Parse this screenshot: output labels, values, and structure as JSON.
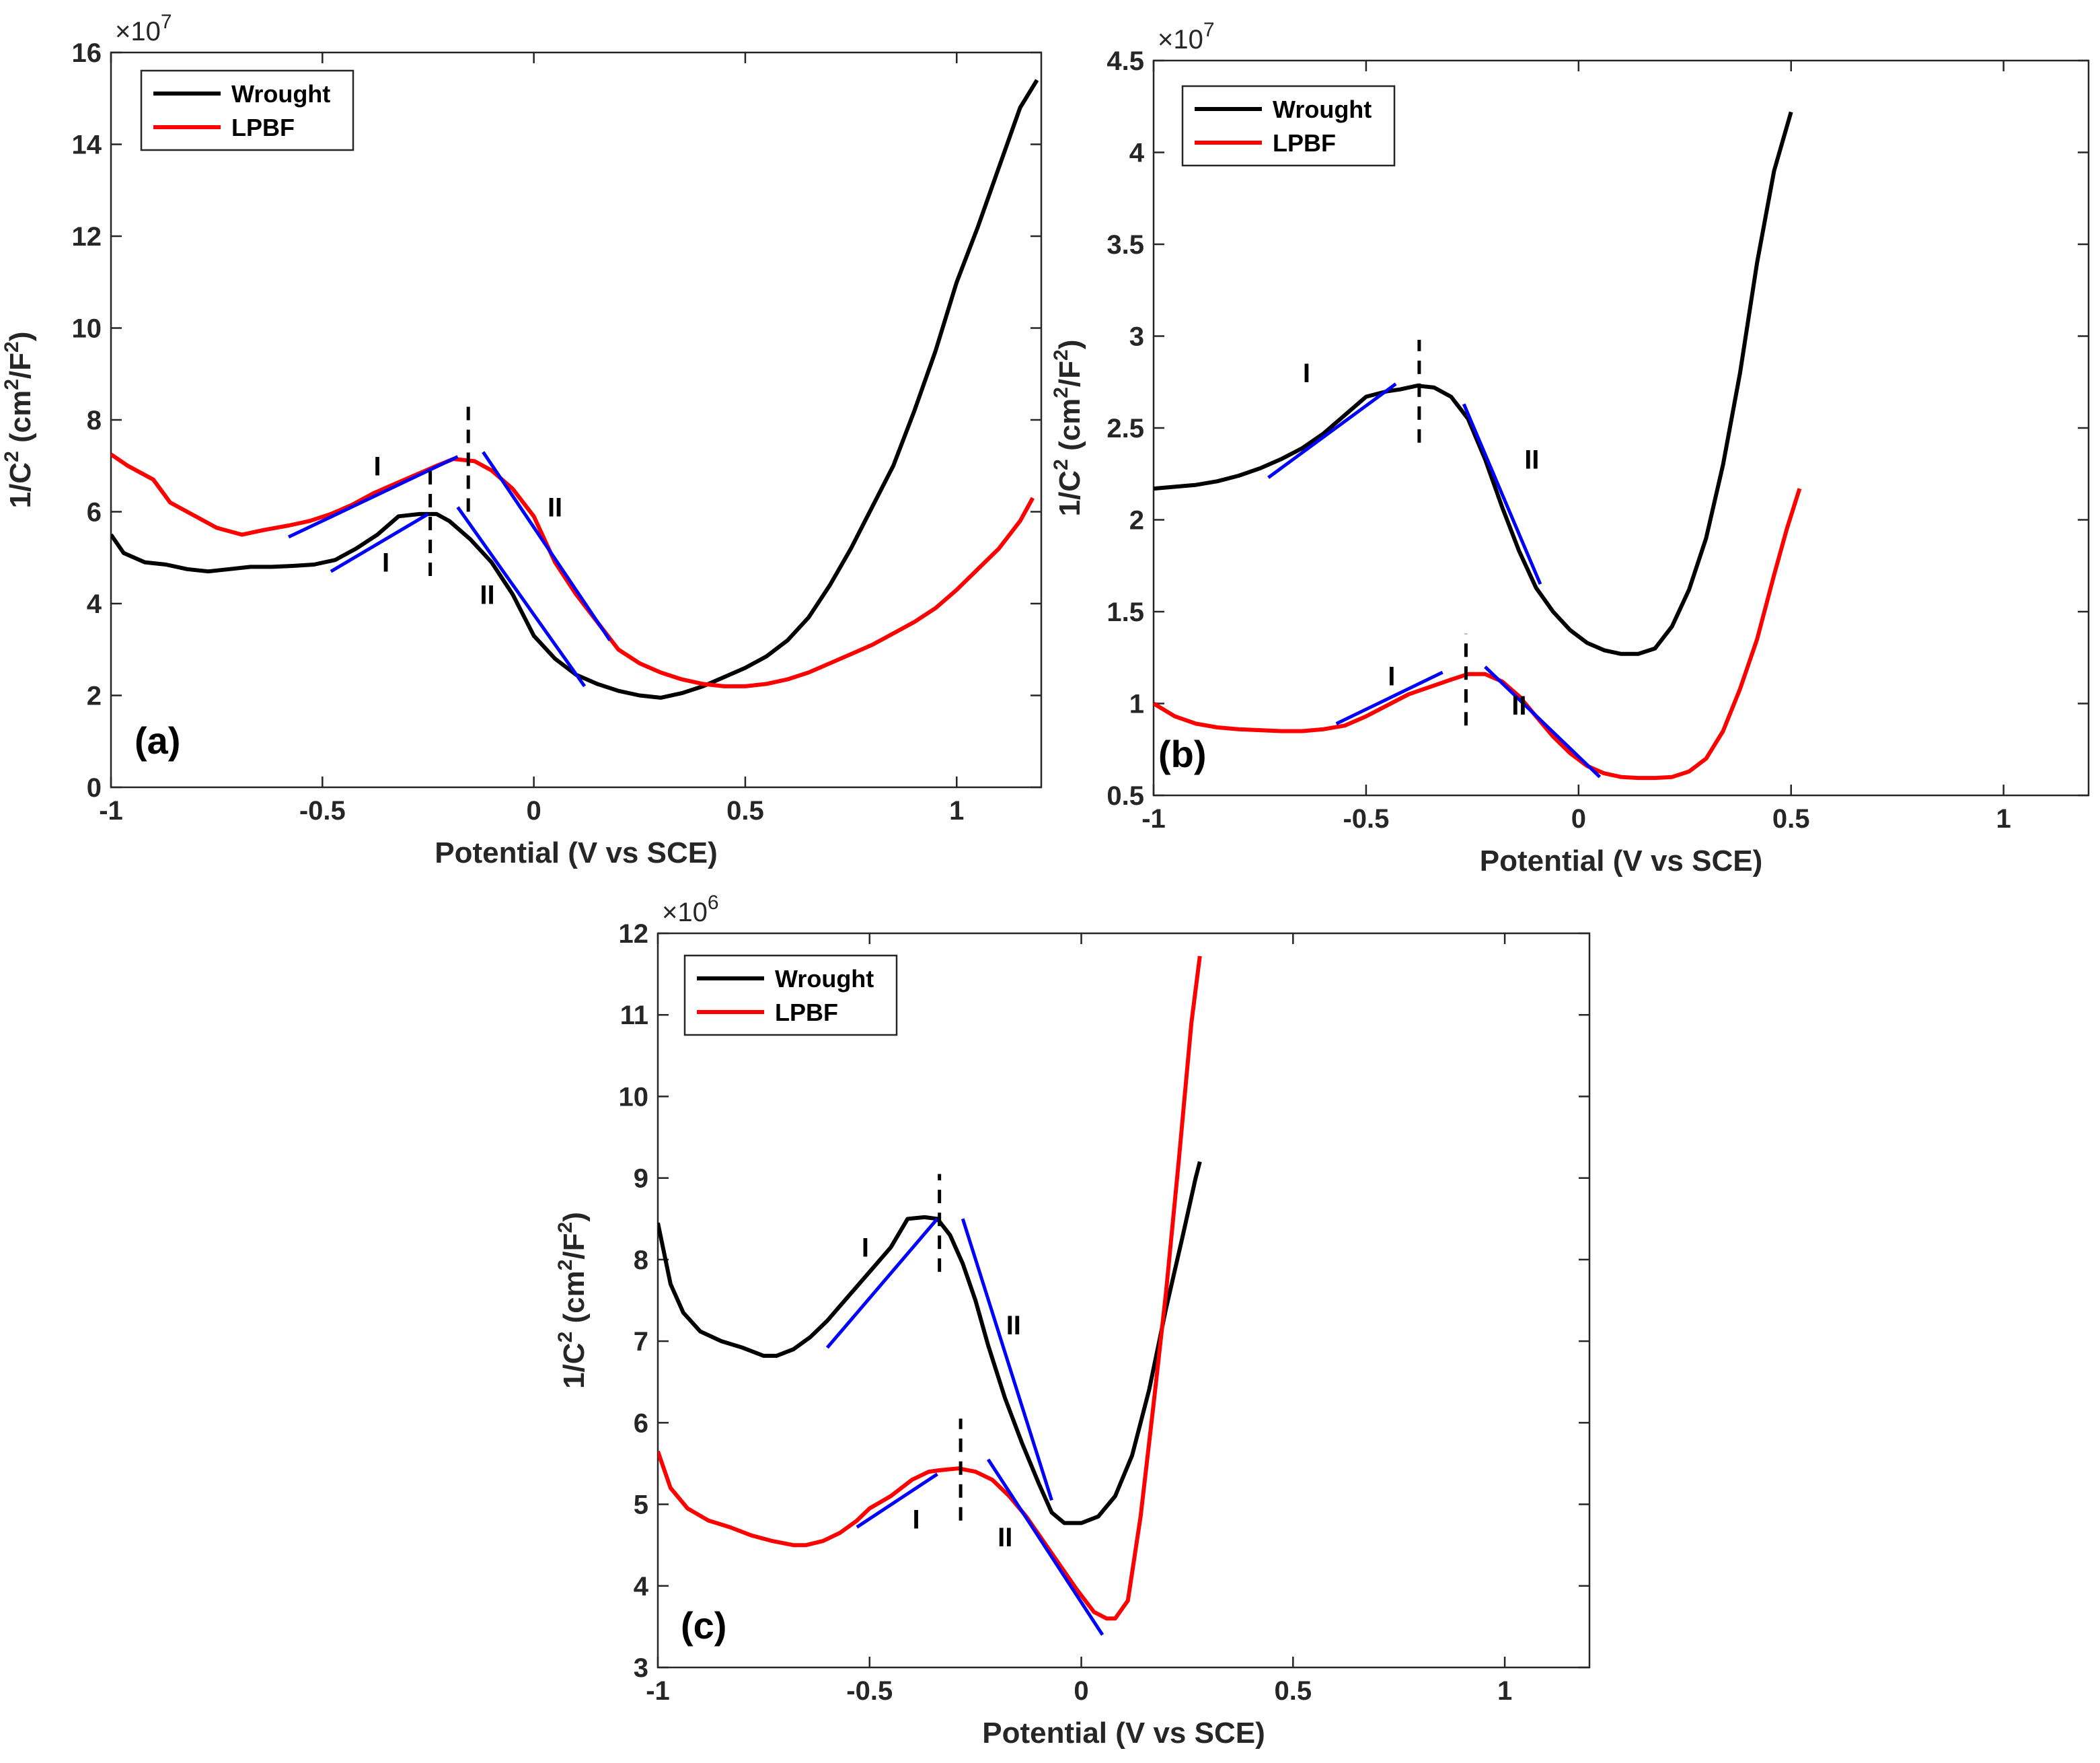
{
  "figure": {
    "xlabel": "Potential (V vs SCE)",
    "ylabel_main": "1/C",
    "ylabel_sup1": "2",
    "ylabel_units_a": " (cm",
    "ylabel_sup2": "2",
    "ylabel_units_b": "/F",
    "ylabel_sup3": "2",
    "ylabel_close": ")"
  },
  "colors": {
    "wrought": "#000000",
    "lpbf": "#ff0000",
    "fit": "#0000ff"
  },
  "chart_data": [
    {
      "id": "a",
      "type": "line",
      "panel_label": "(a)",
      "xlabel": "Potential (V vs SCE)",
      "ylabel": "1/C^2 (cm^2/F^2)",
      "multiplier_base": "×10",
      "multiplier_exp": "7",
      "xlim": [
        -1,
        1.2
      ],
      "ylim": [
        0,
        16
      ],
      "xticks": [
        -1,
        -0.5,
        0,
        0.5,
        1
      ],
      "xtick_labels": [
        "-1",
        "-0.5",
        "0",
        "0.5",
        "1"
      ],
      "yticks": [
        0,
        2,
        4,
        6,
        8,
        10,
        12,
        14,
        16
      ],
      "ytick_labels": [
        "0",
        "2",
        "4",
        "6",
        "8",
        "10",
        "12",
        "14",
        "16"
      ],
      "legend": {
        "position": "top-left",
        "entries": [
          "Wrought",
          "LPBF"
        ]
      },
      "series": [
        {
          "name": "Wrought",
          "color": "#000000",
          "x": [
            -1,
            -0.97,
            -0.92,
            -0.87,
            -0.82,
            -0.77,
            -0.72,
            -0.67,
            -0.62,
            -0.57,
            -0.52,
            -0.47,
            -0.42,
            -0.37,
            -0.32,
            -0.27,
            -0.23,
            -0.2,
            -0.15,
            -0.1,
            -0.05,
            0,
            0.05,
            0.1,
            0.15,
            0.2,
            0.25,
            0.3,
            0.35,
            0.4,
            0.45,
            0.5,
            0.55,
            0.6,
            0.65,
            0.7,
            0.75,
            0.8,
            0.85,
            0.9,
            0.95,
            1,
            1.05,
            1.1,
            1.15,
            1.19
          ],
          "y": [
            5.5,
            5.1,
            4.9,
            4.85,
            4.75,
            4.7,
            4.75,
            4.8,
            4.8,
            4.82,
            4.85,
            4.95,
            5.2,
            5.5,
            5.9,
            5.95,
            5.95,
            5.8,
            5.4,
            4.9,
            4.2,
            3.3,
            2.8,
            2.45,
            2.25,
            2.1,
            2.0,
            1.95,
            2.05,
            2.2,
            2.4,
            2.6,
            2.85,
            3.2,
            3.7,
            4.4,
            5.2,
            6.1,
            7.0,
            8.2,
            9.5,
            11.0,
            12.2,
            13.5,
            14.8,
            15.4
          ]
        },
        {
          "name": "LPBF",
          "color": "#ff0000",
          "x": [
            -1,
            -0.96,
            -0.9,
            -0.86,
            -0.8,
            -0.75,
            -0.69,
            -0.64,
            -0.58,
            -0.53,
            -0.48,
            -0.43,
            -0.38,
            -0.33,
            -0.28,
            -0.23,
            -0.19,
            -0.14,
            -0.1,
            -0.05,
            0,
            0.05,
            0.1,
            0.15,
            0.2,
            0.25,
            0.3,
            0.35,
            0.4,
            0.45,
            0.5,
            0.55,
            0.6,
            0.65,
            0.7,
            0.75,
            0.8,
            0.85,
            0.9,
            0.95,
            1,
            1.05,
            1.1,
            1.15,
            1.18
          ],
          "y": [
            7.25,
            7.0,
            6.7,
            6.2,
            5.9,
            5.65,
            5.5,
            5.6,
            5.7,
            5.8,
            5.95,
            6.15,
            6.4,
            6.6,
            6.8,
            7.0,
            7.15,
            7.1,
            6.9,
            6.5,
            5.9,
            4.9,
            4.2,
            3.6,
            3.0,
            2.7,
            2.5,
            2.35,
            2.25,
            2.2,
            2.2,
            2.25,
            2.35,
            2.5,
            2.7,
            2.9,
            3.1,
            3.35,
            3.6,
            3.9,
            4.3,
            4.75,
            5.2,
            5.8,
            6.3
          ]
        }
      ],
      "fit_lines": [
        {
          "x": [
            -0.58,
            -0.18
          ],
          "y": [
            5.45,
            7.2
          ]
        },
        {
          "x": [
            -0.12,
            0.18
          ],
          "y": [
            7.3,
            3.2
          ]
        },
        {
          "x": [
            -0.48,
            -0.25
          ],
          "y": [
            4.7,
            5.95
          ]
        },
        {
          "x": [
            -0.18,
            0.12
          ],
          "y": [
            6.1,
            2.2
          ]
        }
      ],
      "dashed_lines": [
        {
          "x": -0.155,
          "y": [
            6.0,
            8.35
          ]
        },
        {
          "x": -0.245,
          "y": [
            4.6,
            6.9
          ]
        }
      ],
      "annotations": [
        {
          "text": "I",
          "x": -0.37,
          "y": 7.0
        },
        {
          "text": "II",
          "x": 0.05,
          "y": 6.1
        },
        {
          "text": "I",
          "x": -0.35,
          "y": 4.9
        },
        {
          "text": "II",
          "x": -0.11,
          "y": 4.2
        }
      ]
    },
    {
      "id": "b",
      "type": "line",
      "panel_label": "(b)",
      "xlabel": "Potential (V vs SCE)",
      "ylabel": "1/C^2 (cm^2/F^2)",
      "multiplier_base": "×10",
      "multiplier_exp": "7",
      "xlim": [
        -1,
        1.2
      ],
      "ylim": [
        0.5,
        4.5
      ],
      "xticks": [
        -1,
        -0.5,
        0,
        0.5,
        1
      ],
      "xtick_labels": [
        "-1",
        "-0.5",
        "0",
        "0.5",
        "1"
      ],
      "yticks": [
        0.5,
        1,
        1.5,
        2,
        2.5,
        3,
        3.5,
        4,
        4.5
      ],
      "ytick_labels": [
        "0.5",
        "1",
        "1.5",
        "2",
        "2.5",
        "3",
        "3.5",
        "4",
        "4.5"
      ],
      "legend": {
        "position": "top-left",
        "entries": [
          "Wrought",
          "LPBF"
        ]
      },
      "series": [
        {
          "name": "Wrought",
          "color": "#000000",
          "x": [
            -1,
            -0.95,
            -0.9,
            -0.85,
            -0.8,
            -0.75,
            -0.7,
            -0.65,
            -0.6,
            -0.55,
            -0.5,
            -0.45,
            -0.42,
            -0.38,
            -0.34,
            -0.3,
            -0.26,
            -0.22,
            -0.18,
            -0.14,
            -0.1,
            -0.06,
            -0.02,
            0.02,
            0.06,
            0.1,
            0.14,
            0.18,
            0.22,
            0.26,
            0.3,
            0.34,
            0.38,
            0.42,
            0.46,
            0.5
          ],
          "y": [
            2.17,
            2.18,
            2.19,
            2.21,
            2.24,
            2.28,
            2.33,
            2.39,
            2.47,
            2.57,
            2.67,
            2.7,
            2.71,
            2.73,
            2.72,
            2.67,
            2.55,
            2.33,
            2.07,
            1.83,
            1.63,
            1.5,
            1.4,
            1.33,
            1.29,
            1.27,
            1.27,
            1.3,
            1.42,
            1.62,
            1.9,
            2.3,
            2.8,
            3.4,
            3.9,
            4.22
          ]
        },
        {
          "name": "LPBF",
          "color": "#ff0000",
          "x": [
            -1,
            -0.95,
            -0.9,
            -0.85,
            -0.8,
            -0.75,
            -0.7,
            -0.65,
            -0.6,
            -0.55,
            -0.5,
            -0.45,
            -0.4,
            -0.35,
            -0.3,
            -0.26,
            -0.22,
            -0.18,
            -0.14,
            -0.1,
            -0.06,
            -0.02,
            0.02,
            0.06,
            0.1,
            0.14,
            0.18,
            0.22,
            0.26,
            0.3,
            0.34,
            0.38,
            0.42,
            0.46,
            0.49,
            0.52
          ],
          "y": [
            1.0,
            0.93,
            0.89,
            0.87,
            0.86,
            0.855,
            0.85,
            0.85,
            0.86,
            0.88,
            0.93,
            0.99,
            1.05,
            1.09,
            1.13,
            1.16,
            1.16,
            1.12,
            1.04,
            0.93,
            0.82,
            0.73,
            0.66,
            0.62,
            0.6,
            0.595,
            0.595,
            0.6,
            0.63,
            0.7,
            0.85,
            1.08,
            1.35,
            1.7,
            1.95,
            2.17
          ]
        }
      ],
      "fit_lines": [
        {
          "x": [
            -0.73,
            -0.43
          ],
          "y": [
            2.23,
            2.74
          ]
        },
        {
          "x": [
            -0.27,
            -0.09
          ],
          "y": [
            2.63,
            1.65
          ]
        },
        {
          "x": [
            -0.57,
            -0.32
          ],
          "y": [
            0.89,
            1.17
          ]
        },
        {
          "x": [
            -0.22,
            0.05
          ],
          "y": [
            1.2,
            0.6
          ]
        }
      ],
      "dashed_lines": [
        {
          "x": -0.375,
          "y": [
            2.42,
            2.98
          ]
        },
        {
          "x": -0.265,
          "y": [
            0.88,
            1.38
          ]
        }
      ],
      "annotations": [
        {
          "text": "I",
          "x": -0.64,
          "y": 2.8
        },
        {
          "text": "II",
          "x": -0.11,
          "y": 2.33
        },
        {
          "text": "I",
          "x": -0.44,
          "y": 1.15
        },
        {
          "text": "II",
          "x": -0.14,
          "y": 0.99
        }
      ]
    },
    {
      "id": "c",
      "type": "line",
      "panel_label": "(c)",
      "xlabel": "Potential (V vs SCE)",
      "ylabel": "1/C^2 (cm^2/F^2)",
      "multiplier_base": "×10",
      "multiplier_exp": "6",
      "xlim": [
        -1,
        1.2
      ],
      "ylim": [
        3,
        12
      ],
      "xticks": [
        -1,
        -0.5,
        0,
        0.5,
        1
      ],
      "xtick_labels": [
        "-1",
        "-0.5",
        "0",
        "0.5",
        "1"
      ],
      "yticks": [
        3,
        4,
        5,
        6,
        7,
        8,
        9,
        10,
        11,
        12
      ],
      "ytick_labels": [
        "3",
        "4",
        "5",
        "6",
        "7",
        "8",
        "9",
        "10",
        "11",
        "12"
      ],
      "legend": {
        "position": "top-left",
        "entries": [
          "Wrought",
          "LPBF"
        ]
      },
      "series": [
        {
          "name": "Wrought",
          "color": "#000000",
          "x": [
            -1,
            -0.97,
            -0.94,
            -0.9,
            -0.85,
            -0.8,
            -0.75,
            -0.72,
            -0.68,
            -0.64,
            -0.6,
            -0.55,
            -0.5,
            -0.45,
            -0.41,
            -0.37,
            -0.34,
            -0.31,
            -0.28,
            -0.25,
            -0.22,
            -0.18,
            -0.14,
            -0.1,
            -0.07,
            -0.04,
            0,
            0.04,
            0.08,
            0.12,
            0.16,
            0.2,
            0.24,
            0.27,
            0.28
          ],
          "y": [
            8.45,
            7.7,
            7.35,
            7.12,
            7.0,
            6.92,
            6.82,
            6.82,
            6.9,
            7.05,
            7.25,
            7.55,
            7.85,
            8.15,
            8.5,
            8.52,
            8.5,
            8.3,
            7.95,
            7.5,
            6.95,
            6.3,
            5.75,
            5.25,
            4.9,
            4.77,
            4.77,
            4.85,
            5.1,
            5.6,
            6.4,
            7.4,
            8.3,
            9.0,
            9.2
          ]
        },
        {
          "name": "LPBF",
          "color": "#ff0000",
          "x": [
            -1,
            -0.97,
            -0.93,
            -0.88,
            -0.83,
            -0.78,
            -0.73,
            -0.68,
            -0.65,
            -0.61,
            -0.57,
            -0.53,
            -0.5,
            -0.45,
            -0.4,
            -0.36,
            -0.33,
            -0.29,
            -0.25,
            -0.21,
            -0.17,
            -0.13,
            -0.09,
            -0.05,
            -0.01,
            0.03,
            0.06,
            0.08,
            0.11,
            0.14,
            0.17,
            0.2,
            0.23,
            0.26,
            0.28
          ],
          "y": [
            5.65,
            5.2,
            4.95,
            4.8,
            4.72,
            4.62,
            4.55,
            4.5,
            4.5,
            4.55,
            4.65,
            4.8,
            4.95,
            5.1,
            5.3,
            5.4,
            5.42,
            5.44,
            5.4,
            5.3,
            5.1,
            4.85,
            4.55,
            4.25,
            3.95,
            3.68,
            3.6,
            3.6,
            3.82,
            4.85,
            6.2,
            7.6,
            9.2,
            10.9,
            11.72
          ]
        }
      ],
      "fit_lines": [
        {
          "x": [
            -0.6,
            -0.34
          ],
          "y": [
            6.92,
            8.5
          ]
        },
        {
          "x": [
            -0.28,
            -0.07
          ],
          "y": [
            8.5,
            5.05
          ]
        },
        {
          "x": [
            -0.53,
            -0.34
          ],
          "y": [
            4.72,
            5.37
          ]
        },
        {
          "x": [
            -0.22,
            0.05
          ],
          "y": [
            5.55,
            3.4
          ]
        }
      ],
      "dashed_lines": [
        {
          "x": -0.335,
          "y": [
            7.85,
            9.05
          ]
        },
        {
          "x": -0.285,
          "y": [
            4.8,
            6.05
          ]
        }
      ],
      "annotations": [
        {
          "text": "I",
          "x": -0.51,
          "y": 8.15
        },
        {
          "text": "II",
          "x": -0.16,
          "y": 7.2
        },
        {
          "text": "I",
          "x": -0.39,
          "y": 4.82
        },
        {
          "text": "II",
          "x": -0.18,
          "y": 4.6
        }
      ]
    }
  ]
}
